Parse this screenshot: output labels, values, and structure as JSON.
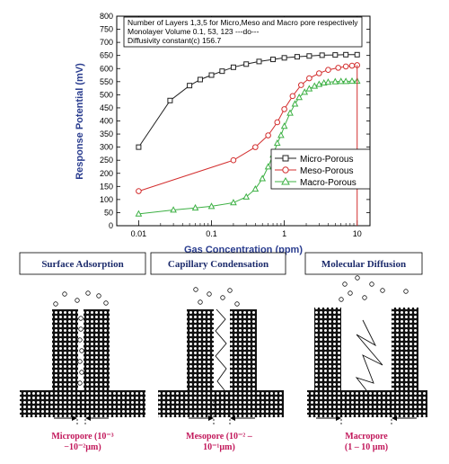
{
  "chart_data": {
    "type": "line",
    "ylabel": "Response Potential (mV)",
    "xlabel": "Gas Concentration (ppm)",
    "xscale": "log",
    "xlim": [
      0.005,
      15
    ],
    "ylim": [
      0,
      800
    ],
    "yticks": [
      "0",
      "50",
      "100",
      "150",
      "200",
      "250",
      "300",
      "350",
      "400",
      "450",
      "500",
      "550",
      "600",
      "650",
      "700",
      "750",
      "800"
    ],
    "xticks": [
      "0.01",
      "0.1",
      "1",
      "10"
    ],
    "info_lines": [
      "Number of Layers  1,3,5 for Micro,Meso and Macro pore respectively",
      "Monolayer Volume 0.1, 53, 123        ---do---",
      "Diffusivity constant(c) 156.7"
    ],
    "legend_position": "bottom-right",
    "series": [
      {
        "name": "Micro-Porous",
        "color": "#222222",
        "marker": "square",
        "x": [
          0.01,
          0.027,
          0.05,
          0.07,
          0.1,
          0.14,
          0.2,
          0.3,
          0.45,
          0.7,
          1,
          1.5,
          2.2,
          3.3,
          5,
          7,
          10
        ],
        "y": [
          300,
          478,
          535,
          558,
          575,
          590,
          605,
          617,
          627,
          635,
          641,
          645,
          648,
          651,
          652,
          653,
          653
        ]
      },
      {
        "name": "Meso-Porous",
        "color": "#d32f2f",
        "marker": "circle",
        "x": [
          0.01,
          0.2,
          0.4,
          0.6,
          0.8,
          1,
          1.3,
          1.7,
          2.2,
          3,
          4,
          5.5,
          7,
          8.5,
          10
        ],
        "y": [
          132,
          250,
          300,
          345,
          395,
          445,
          495,
          537,
          563,
          582,
          595,
          603,
          608,
          611,
          613
        ]
      },
      {
        "name": "Macro-Porous",
        "color": "#3cb043",
        "marker": "triangle",
        "x": [
          0.01,
          0.03,
          0.06,
          0.1,
          0.2,
          0.3,
          0.4,
          0.5,
          0.6,
          0.7,
          0.8,
          0.9,
          1,
          1.2,
          1.4,
          1.6,
          1.9,
          2.2,
          2.6,
          3,
          3.5,
          4,
          5,
          6,
          7,
          8.5,
          10
        ],
        "y": [
          45,
          60,
          68,
          74,
          88,
          110,
          140,
          180,
          225,
          270,
          315,
          345,
          380,
          430,
          465,
          490,
          510,
          523,
          533,
          540,
          545,
          548,
          550,
          551,
          551,
          552,
          552
        ]
      }
    ]
  },
  "diagram": {
    "panels": [
      {
        "title": "Surface Adsorption",
        "label_line1": "Micropore (10⁻³",
        "label_line2": "−10⁻²µm)"
      },
      {
        "title": "Capillary Condensation",
        "label_line1": "Mesopore (10⁻² –",
        "label_line2": "10⁻¹µm)"
      },
      {
        "title": "Molecular Diffusion",
        "label_line1": "Macropore",
        "label_line2": "(1 – 10 µm)"
      }
    ]
  }
}
